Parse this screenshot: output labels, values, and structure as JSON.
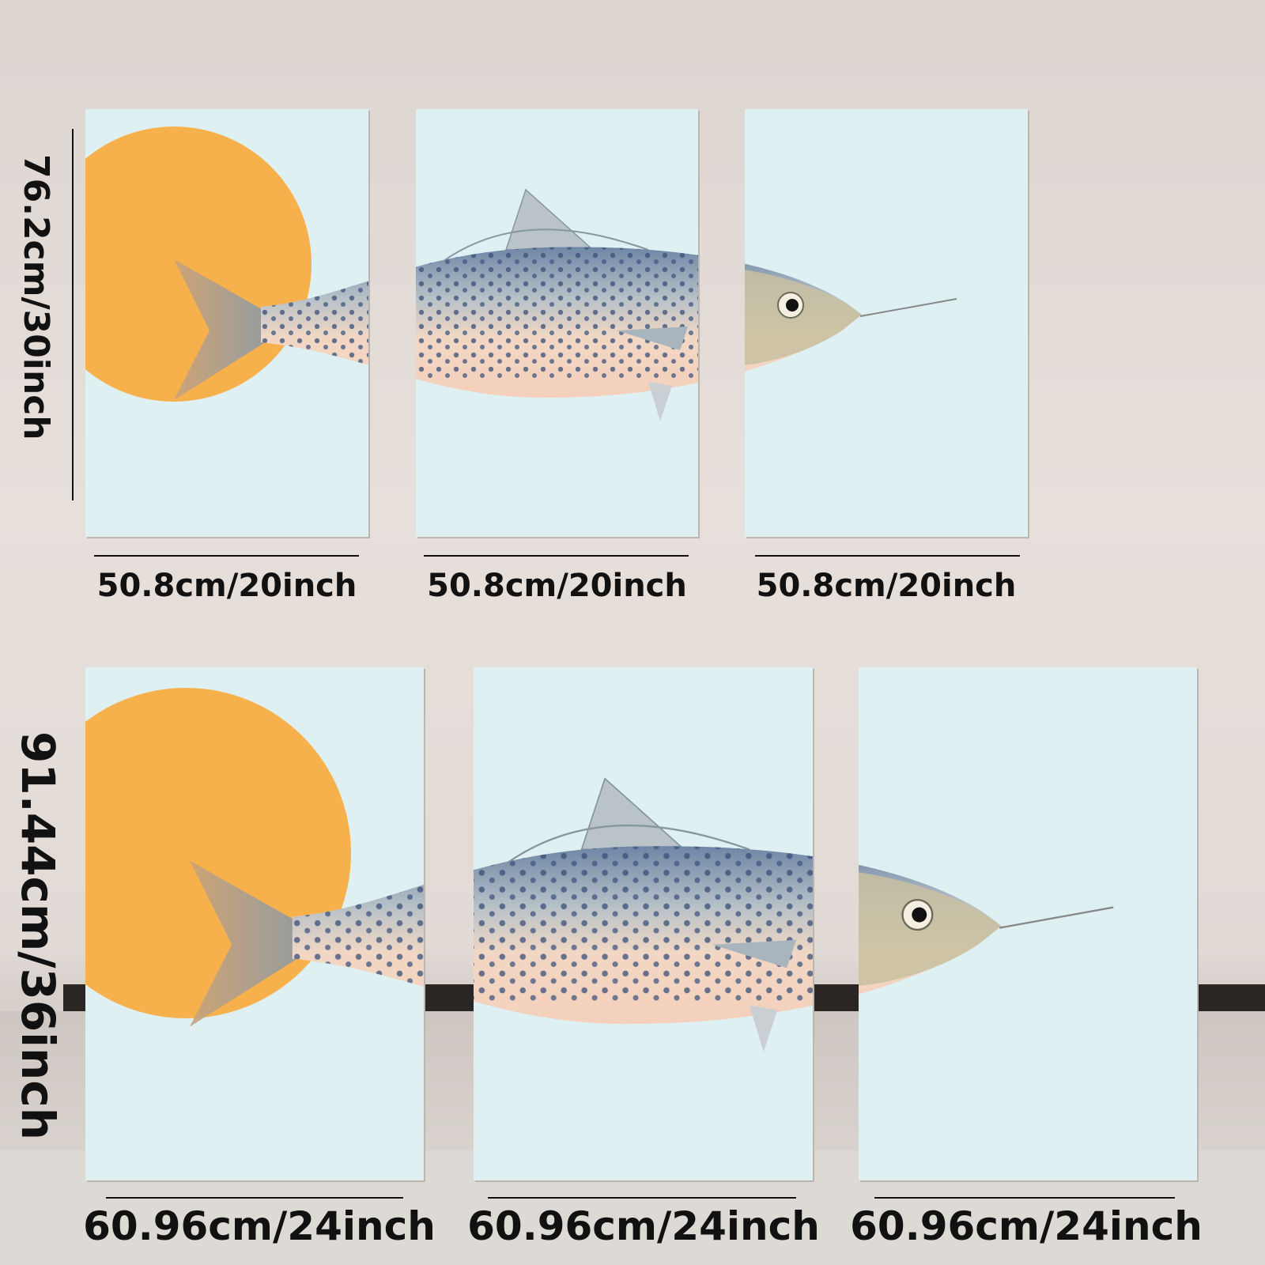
{
  "colors": {
    "panel": "#dff0f3",
    "sun": "#f7b14c",
    "wall": "#e2dad5",
    "label": "#111111"
  },
  "top_row": {
    "height_label": "76.2cm/30inch",
    "width_labels": [
      "50.8cm/20inch",
      "50.8cm/20inch",
      "50.8cm/20inch"
    ]
  },
  "bottom_row": {
    "height_label": "91.44cm/36inch",
    "width_labels": [
      "60.96cm/24inch",
      "60.96cm/24inch",
      "60.96cm/24inch"
    ]
  }
}
